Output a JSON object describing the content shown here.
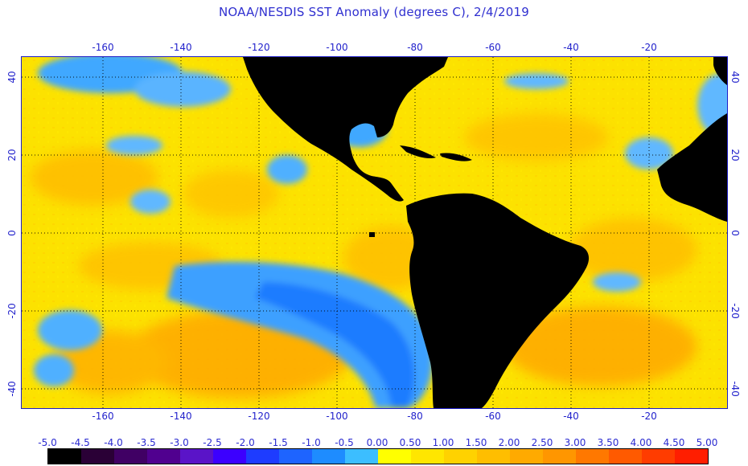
{
  "title": "NOAA/NESDIS SST Anomaly (degrees C), 2/4/2019",
  "longitude_ticks": [
    "-160",
    "-140",
    "-120",
    "-100",
    "-80",
    "-60",
    "-40",
    "-20"
  ],
  "latitude_ticks": [
    "40",
    "20",
    "0",
    "-20",
    "-40"
  ],
  "map_extent": {
    "lon_min": -180,
    "lon_max": 0,
    "lat_min": -45,
    "lat_max": 45
  },
  "grid_lines": "dotted",
  "colors": {
    "ocean_base": "#fce200",
    "warm": "#ffb800",
    "cool": "#3ca0ff",
    "cold": "#1e72ff",
    "land": "#000000",
    "frame": "#1e1ec8",
    "text": "#2a2ad0"
  },
  "color_scale": {
    "labels": [
      "-5.0",
      "-4.5",
      "-4.0",
      "-3.5",
      "-3.0",
      "-2.5",
      "-2.0",
      "-1.5",
      "-1.0",
      "-0.5",
      "0.00",
      "0.50",
      "1.00",
      "1.50",
      "2.00",
      "2.50",
      "3.00",
      "3.50",
      "4.00",
      "4.50",
      "5.00"
    ],
    "colors": [
      "#000000",
      "#2a0036",
      "#400064",
      "#50008f",
      "#5a14c8",
      "#3c00ff",
      "#1e3cff",
      "#1e64ff",
      "#1e8cff",
      "#3cbeff",
      "#ffff00",
      "#ffe600",
      "#ffd200",
      "#ffbe00",
      "#ffaa00",
      "#ff9600",
      "#ff7800",
      "#ff5a00",
      "#ff3c00",
      "#ff1e00"
    ]
  }
}
